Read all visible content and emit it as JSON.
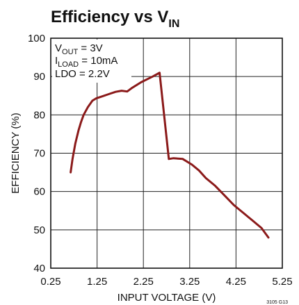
{
  "chart_data": {
    "type": "line",
    "title": "Efficiency vs V",
    "title_subscript": "IN",
    "xlabel": "INPUT VOLTAGE (V)",
    "ylabel": "EFFICIENCY (%)",
    "xlim": [
      0.25,
      5.25
    ],
    "ylim": [
      40,
      100
    ],
    "x_ticks": [
      "0.25",
      "1.25",
      "2.25",
      "3.25",
      "4.25",
      "5.25"
    ],
    "y_ticks": [
      "40",
      "50",
      "60",
      "70",
      "80",
      "90",
      "100"
    ],
    "grid": true,
    "annotations": [
      {
        "main": "V",
        "sub": "OUT",
        "rest": " = 3V"
      },
      {
        "main": "I",
        "sub": "LOAD",
        "rest": " = 10mA"
      },
      {
        "main": "LDO = 2.2V",
        "sub": "",
        "rest": ""
      }
    ],
    "figure_id": "3105 G13",
    "series": [
      {
        "color": "#8b1a1a",
        "x": [
          0.68,
          0.72,
          0.78,
          0.85,
          0.9,
          0.96,
          1.05,
          1.15,
          1.23,
          1.35,
          1.5,
          1.65,
          1.78,
          1.9,
          2.0,
          2.2,
          2.45,
          2.6,
          2.8,
          2.9,
          3.1,
          3.3,
          3.45,
          3.6,
          3.8,
          4.0,
          4.2,
          4.4,
          4.6,
          4.8,
          4.95
        ],
        "y": [
          65,
          68.5,
          72.5,
          76,
          78,
          80,
          82,
          83.7,
          84.3,
          84.8,
          85.4,
          86,
          86.3,
          86.1,
          87,
          88.5,
          90,
          91,
          68.5,
          68.7,
          68.5,
          67,
          65.5,
          63.5,
          61.5,
          59,
          56.5,
          54.5,
          52.5,
          50.5,
          48
        ]
      }
    ]
  }
}
